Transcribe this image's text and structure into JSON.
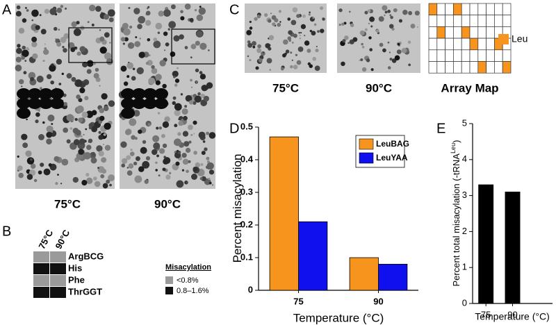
{
  "panel_labels": [
    "A",
    "B",
    "C",
    "D",
    "E"
  ],
  "panel_a": {
    "captions": [
      "75°C",
      "90°C"
    ]
  },
  "panel_b": {
    "columns": [
      "75°C",
      "90°C"
    ],
    "rows": [
      {
        "label": "ArgBCG",
        "levels": [
          "<0.8%",
          "<0.8%"
        ]
      },
      {
        "label": "His",
        "levels": [
          "0.8–1.6%",
          "0.8–1.6%"
        ]
      },
      {
        "label": "Phe",
        "levels": [
          "<0.8%",
          "<0.8%"
        ]
      },
      {
        "label": "ThrGGT",
        "levels": [
          "0.8–1.6%",
          "0.8–1.6%"
        ]
      }
    ],
    "legend_title": "Misacylation",
    "legend": [
      {
        "label": "<0.8%",
        "color": "#9a9a9a"
      },
      {
        "label": "0.8–1.6%",
        "color": "#111111"
      }
    ]
  },
  "panel_c": {
    "captions": [
      "75°C",
      "90°C",
      "Array Map"
    ],
    "legend": "Leu",
    "color": "#f7941d"
  },
  "chart_data": [
    {
      "type": "bar",
      "categories": [
        "75",
        "90"
      ],
      "series": [
        {
          "name": "LeuBAG",
          "color": "#f7941d",
          "values": [
            0.47,
            0.1
          ]
        },
        {
          "name": "LeuYAA",
          "color": "#1010ee",
          "values": [
            0.21,
            0.08
          ]
        }
      ],
      "ylim": [
        0,
        0.5
      ],
      "yticks": [
        0,
        0.1,
        0.2,
        0.3,
        0.4,
        0.5
      ],
      "x_label": "Temperature (°C)",
      "y_label": "Percent misacylation"
    },
    {
      "type": "bar",
      "categories": [
        "75",
        "90"
      ],
      "values": [
        3.3,
        3.1
      ],
      "color": "#000000",
      "ylim": [
        0,
        5
      ],
      "yticks": [
        0,
        1,
        2,
        3,
        4,
        5
      ],
      "x_label": "Temperature (°C)",
      "y_label": "Percent total misacylation (-tRNA",
      "y_label_sup": "Leu",
      "y_label_end": ")"
    }
  ]
}
